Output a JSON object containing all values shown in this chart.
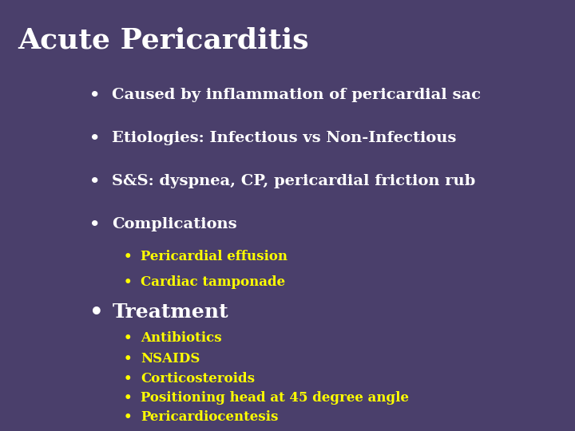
{
  "title": "Acute Pericarditis",
  "title_color": "#ffffff",
  "title_bg_color": "#2a2535",
  "bg_color": "#7b6b9d",
  "outer_bg_color": "#4a3f6b",
  "sidebar_color": "#3d3355",
  "white_color": "#ffffff",
  "yellow_color": "#ffff00",
  "bullet_l1": [
    "Caused by inflammation of pericardial sac",
    "Etiologies: Infectious vs Non-Infectious",
    "S&S: dyspnea, CP, pericardial friction rub",
    "Complications"
  ],
  "bullet_l2_complications": [
    "Pericardial effusion",
    "Cardiac tamponade"
  ],
  "bullet_treatment": "Treatment",
  "bullet_l2_treatment": [
    "Antibiotics",
    "NSAIDS",
    "Corticosteroids",
    "Positioning head at 45 degree angle",
    "Pericardiocentesis"
  ],
  "title_fontsize": 26,
  "l1_fontsize": 14,
  "l2_fontsize": 12,
  "treatment_fontsize": 18,
  "fig_width": 7.2,
  "fig_height": 5.4,
  "dpi": 100
}
